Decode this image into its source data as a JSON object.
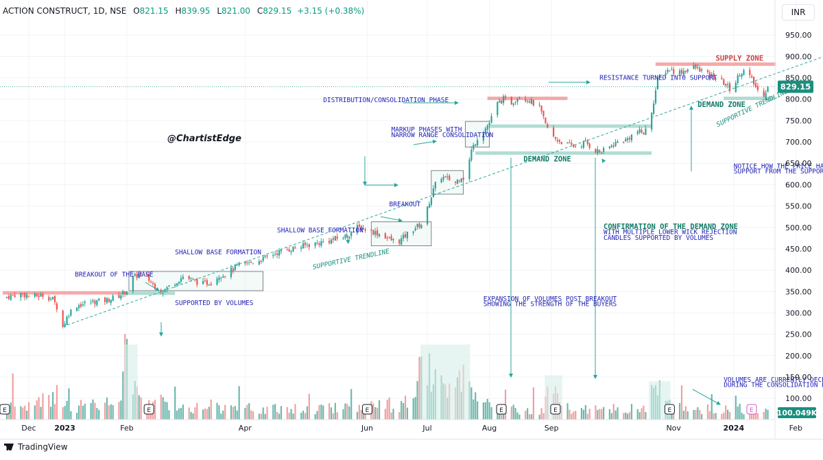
{
  "legend": {
    "symbol": "ACTION CONSTRUCT, 1D, NSE",
    "o_label": "O",
    "o_val": "821.15",
    "h_label": "H",
    "h_val": "839.95",
    "l_label": "L",
    "l_val": "821.00",
    "c_label": "C",
    "c_val": "829.15",
    "change": "+3.15 (+0.38%)"
  },
  "currency": "INR",
  "watermark": "@ChartistEdge",
  "brand": "TradingView",
  "colors": {
    "up": "#26a69a",
    "down": "#ef5350",
    "vol_up": "#6cb8ad",
    "vol_down": "#f0a0a0",
    "annot": "#1f1fb4",
    "zone_supply": "#f5a0a0",
    "zone_demand": "#a8d8cf",
    "trend": "#26a69a",
    "price_tag": "#1a8f7e"
  },
  "chart_data": {
    "type": "candlestick",
    "y_axis": {
      "min": 0,
      "max": 975,
      "ticks": [
        100,
        150,
        200,
        250,
        300,
        350,
        400,
        450,
        500,
        550,
        600,
        650,
        700,
        750,
        800,
        850,
        900,
        950
      ],
      "tick_labels": [
        "100.00",
        "150.00",
        "200.00",
        "250.00",
        "300.00",
        "350.00",
        "400.00",
        "450.00",
        "500.00",
        "550.00",
        "600.00",
        "650.00",
        "700.00",
        "750.00",
        "800.00",
        "850.00",
        "900.00",
        "950.00"
      ]
    },
    "x_axis": {
      "labels": [
        "Dec",
        "2023",
        "Feb",
        "Apr",
        "Jun",
        "Jul",
        "Aug",
        "Sep",
        "Nov",
        "2024",
        "Feb"
      ],
      "label_days": [
        13,
        31,
        62,
        121,
        182,
        212,
        243,
        274,
        335,
        365,
        396
      ],
      "start_date": "2022-11-19",
      "end_date": "2024-02-29"
    },
    "last_price": "829.15",
    "last_volume": "100.049K",
    "price_path": [
      [
        0,
        335
      ],
      [
        8,
        345
      ],
      [
        15,
        338
      ],
      [
        20,
        342
      ],
      [
        25,
        332
      ],
      [
        28,
        305
      ],
      [
        30,
        268
      ],
      [
        33,
        300
      ],
      [
        37,
        318
      ],
      [
        45,
        326
      ],
      [
        52,
        330
      ],
      [
        58,
        340
      ],
      [
        62,
        352
      ],
      [
        64,
        380
      ],
      [
        68,
        390
      ],
      [
        72,
        382
      ],
      [
        76,
        362
      ],
      [
        80,
        352
      ],
      [
        86,
        372
      ],
      [
        90,
        385
      ],
      [
        95,
        376
      ],
      [
        100,
        368
      ],
      [
        104,
        372
      ],
      [
        108,
        388
      ],
      [
        112,
        392
      ],
      [
        117,
        410
      ],
      [
        121,
        415
      ],
      [
        126,
        420
      ],
      [
        131,
        428
      ],
      [
        136,
        440
      ],
      [
        141,
        446
      ],
      [
        146,
        452
      ],
      [
        151,
        458
      ],
      [
        156,
        462
      ],
      [
        160,
        466
      ],
      [
        164,
        470
      ],
      [
        168,
        476
      ],
      [
        172,
        480
      ],
      [
        176,
        500
      ],
      [
        180,
        498
      ],
      [
        186,
        488
      ],
      [
        190,
        482
      ],
      [
        194,
        470
      ],
      [
        198,
        468
      ],
      [
        202,
        485
      ],
      [
        206,
        500
      ],
      [
        210,
        510
      ],
      [
        213,
        560
      ],
      [
        216,
        600
      ],
      [
        219,
        618
      ],
      [
        223,
        612
      ],
      [
        226,
        605
      ],
      [
        229,
        620
      ],
      [
        231,
        612
      ],
      [
        234,
        680
      ],
      [
        237,
        710
      ],
      [
        240,
        725
      ],
      [
        243,
        745
      ],
      [
        247,
        790
      ],
      [
        250,
        800
      ],
      [
        254,
        792
      ],
      [
        258,
        808
      ],
      [
        262,
        800
      ],
      [
        265,
        790
      ],
      [
        268,
        780
      ],
      [
        271,
        740
      ],
      [
        275,
        710
      ],
      [
        279,
        700
      ],
      [
        283,
        692
      ],
      [
        287,
        688
      ],
      [
        291,
        700
      ],
      [
        295,
        682
      ],
      [
        299,
        676
      ],
      [
        303,
        688
      ],
      [
        307,
        700
      ],
      [
        311,
        704
      ],
      [
        314,
        715
      ],
      [
        317,
        725
      ],
      [
        320,
        720
      ],
      [
        322,
        735
      ],
      [
        324,
        772
      ],
      [
        327,
        845
      ],
      [
        330,
        865
      ],
      [
        333,
        870
      ],
      [
        337,
        862
      ],
      [
        341,
        868
      ],
      [
        345,
        875
      ],
      [
        348,
        870
      ],
      [
        352,
        856
      ],
      [
        356,
        850
      ],
      [
        360,
        838
      ],
      [
        364,
        820
      ],
      [
        368,
        862
      ],
      [
        371,
        868
      ],
      [
        374,
        845
      ],
      [
        377,
        820
      ],
      [
        380,
        812
      ],
      [
        382,
        829
      ]
    ],
    "volume_profile": [
      [
        0,
        60
      ],
      [
        10,
        58
      ],
      [
        20,
        65
      ],
      [
        28,
        110
      ],
      [
        35,
        55
      ],
      [
        48,
        60
      ],
      [
        58,
        70
      ],
      [
        62,
        230
      ],
      [
        66,
        150
      ],
      [
        70,
        80
      ],
      [
        90,
        55
      ],
      [
        110,
        50
      ],
      [
        121,
        45
      ],
      [
        150,
        40
      ],
      [
        176,
        60
      ],
      [
        186,
        55
      ],
      [
        206,
        70
      ],
      [
        210,
        295
      ],
      [
        214,
        150
      ],
      [
        218,
        140
      ],
      [
        222,
        100
      ],
      [
        226,
        120
      ],
      [
        230,
        150
      ],
      [
        234,
        90
      ],
      [
        240,
        60
      ],
      [
        250,
        45
      ],
      [
        270,
        40
      ],
      [
        274,
        145
      ],
      [
        280,
        45
      ],
      [
        300,
        40
      ],
      [
        320,
        50
      ],
      [
        324,
        95
      ],
      [
        328,
        115
      ],
      [
        332,
        60
      ],
      [
        340,
        50
      ],
      [
        360,
        40
      ],
      [
        382,
        38
      ]
    ],
    "zones": [
      {
        "name": "SUPPLY ZONE",
        "price": 882,
        "x0": 326,
        "x1": 386,
        "color": "red"
      },
      {
        "name": "DEMAND ZONE",
        "price": 802,
        "x0": 360,
        "x1": 386,
        "color": "green"
      },
      {
        "name": "zone-august-resistance",
        "price": 802,
        "x0": 242,
        "x1": 282,
        "color": "red"
      },
      {
        "name": "zone-mid",
        "price": 737,
        "x0": 242,
        "x1": 324,
        "color": "green"
      },
      {
        "name": "DEMAND ZONE",
        "price": 674,
        "x0": 236,
        "x1": 324,
        "color": "green"
      },
      {
        "name": "zone-base-resistance",
        "price": 347,
        "x0": 0,
        "x1": 62,
        "color": "red"
      },
      {
        "name": "zone-base-support",
        "price": 346,
        "x0": 62,
        "x1": 86,
        "color": "green"
      }
    ],
    "boxes": [
      {
        "x0": 63,
        "x1": 130,
        "p0": 352,
        "p1": 397
      },
      {
        "x0": 184,
        "x1": 214,
        "p0": 457,
        "p1": 513
      },
      {
        "x0": 214,
        "x1": 230,
        "p0": 578,
        "p1": 633
      },
      {
        "x0": 231,
        "x1": 243,
        "p0": 688,
        "p1": 748
      }
    ],
    "trendline": {
      "x0": 30,
      "p0": 268,
      "x1": 410,
      "p1": 900
    },
    "annotations": [
      {
        "text": "BREAKOUT OF THE BASE",
        "x": 36,
        "p": 385
      },
      {
        "text": "SHALLOW BASE FORMATION",
        "x": 86,
        "p": 437
      },
      {
        "text": "SUPPORTED BY VOLUMES",
        "x": 86,
        "p": 318
      },
      {
        "text": "SHALLOW BASE FORMATION",
        "x": 137,
        "p": 488
      },
      {
        "text": "BREAKOUT",
        "x": 193,
        "p": 549
      },
      {
        "text": "MARKUP PHASES WITH",
        "x": 194,
        "p": 724
      },
      {
        "text": "NARROW RANGE CONSOLIDATION",
        "x": 194,
        "p": 711
      },
      {
        "text": "DISTRIBUTION/CONSOLIDATION PHASE",
        "x": 160,
        "p": 793
      },
      {
        "text": "RESISTANCE TURNED INTO SUPPORT",
        "x": 298,
        "p": 845
      },
      {
        "text": "SUPPLY ZONE",
        "x": 356,
        "p": 890
      },
      {
        "text": "DEMAND ZONE",
        "x": 347,
        "p": 782
      },
      {
        "text": "DEMAND ZONE",
        "x": 260,
        "p": 654
      },
      {
        "text": "SUPPORTIVE TRENDLINE",
        "x": 357,
        "p": 735
      },
      {
        "text": "SUPPORTIVE TRENDLINE",
        "x": 155,
        "p": 402
      },
      {
        "text": "NOTICE HOW THE PRICE HAS TAKEN MULTIPLE",
        "x": 365,
        "p": 638
      },
      {
        "text": "SUPPORT FROM THE SUPPORTIVE TRENDLINE",
        "x": 365,
        "p": 626
      },
      {
        "text": "CONFIRMATION OF THE DEMAND ZONE",
        "x": 300,
        "p": 496
      },
      {
        "text": "WITH MULTIPLE LOWER WICK REJECTION",
        "x": 300,
        "p": 484
      },
      {
        "text": "CANDLES SUPPORTED BY VOLUMES",
        "x": 300,
        "p": 471
      },
      {
        "text": "EXPANSION OF VOLUMES POST BREAKOUT",
        "x": 240,
        "p": 328
      },
      {
        "text": "SHOWING THE STRENGTH OF THE BUYERS",
        "x": 240,
        "p": 316
      },
      {
        "text": "VOLUMES ARE CURRENTLY DECENT/FLAT",
        "x": 360,
        "p": 139
      },
      {
        "text": "DURING THE CONSOLIDATION PHASE",
        "x": 360,
        "p": 127
      }
    ],
    "event_markers_days": [
      1,
      73,
      182,
      249,
      276,
      333,
      398
    ]
  }
}
